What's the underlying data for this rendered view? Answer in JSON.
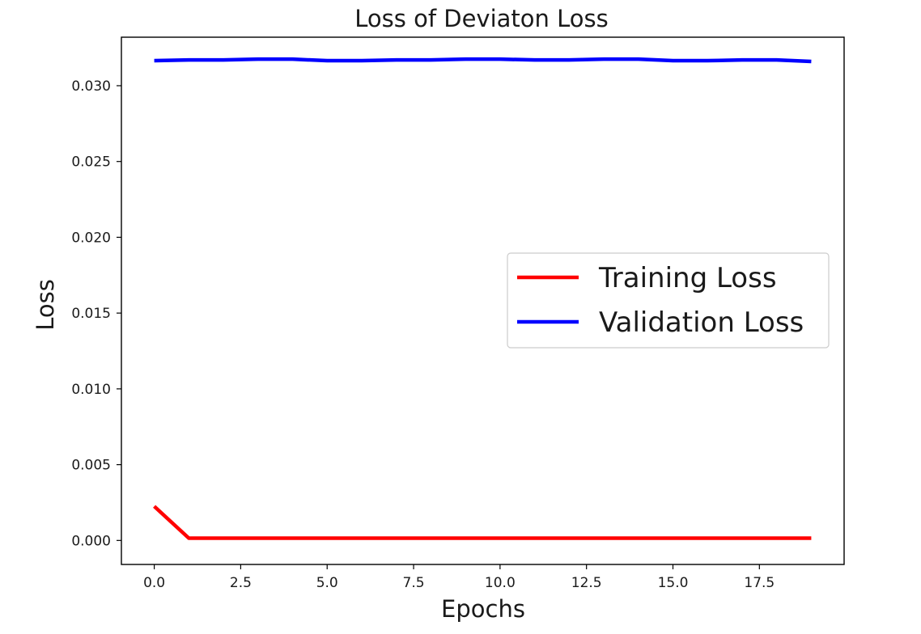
{
  "chart_data": {
    "type": "line",
    "title": "Loss of Deviaton Loss",
    "xlabel": "Epochs",
    "ylabel": "Loss",
    "xlim": [
      -0.95,
      19.95
    ],
    "ylim": [
      -0.0015833,
      0.0332
    ],
    "xticks": [
      0,
      2.5,
      5,
      7.5,
      10,
      12.5,
      15,
      17.5
    ],
    "xtick_labels": [
      "0.0",
      "2.5",
      "5.0",
      "7.5",
      "10.0",
      "12.5",
      "15.0",
      "17.5"
    ],
    "yticks": [
      0,
      0.005,
      0.01,
      0.015,
      0.02,
      0.025,
      0.03
    ],
    "ytick_labels": [
      "0.000",
      "0.005",
      "0.010",
      "0.015",
      "0.020",
      "0.025",
      "0.030"
    ],
    "x": [
      0,
      1,
      2,
      3,
      4,
      5,
      6,
      7,
      8,
      9,
      10,
      11,
      12,
      13,
      14,
      15,
      16,
      17,
      18,
      19
    ],
    "series": [
      {
        "name": "Training Loss",
        "color": "#ff0000",
        "values": [
          0.00225,
          0.00015,
          0.00015,
          0.00015,
          0.00015,
          0.00015,
          0.00015,
          0.00015,
          0.00015,
          0.00015,
          0.00015,
          0.00015,
          0.00015,
          0.00015,
          0.00015,
          0.00015,
          0.00015,
          0.00015,
          0.00015,
          0.00015
        ]
      },
      {
        "name": "Validation Loss",
        "color": "#0000ff",
        "values": [
          0.03165,
          0.0317,
          0.0317,
          0.03175,
          0.03175,
          0.03165,
          0.03165,
          0.0317,
          0.0317,
          0.03175,
          0.03175,
          0.0317,
          0.0317,
          0.03175,
          0.03175,
          0.03165,
          0.03165,
          0.0317,
          0.0317,
          0.0316
        ]
      }
    ],
    "legend_position": "center-right",
    "grid": false
  }
}
